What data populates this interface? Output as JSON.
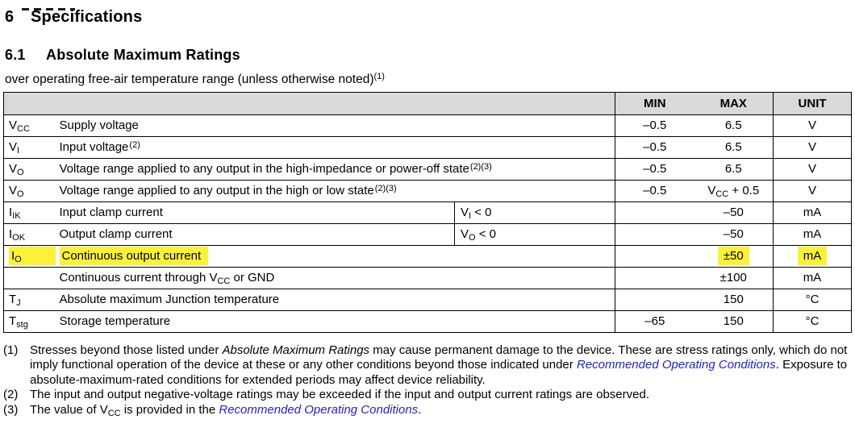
{
  "colors": {
    "highlight": "#fbf138",
    "link": "#2323cc",
    "header_bg": "#d9d9d9",
    "border": "#000000"
  },
  "heading": {
    "number": "6",
    "title": "Specifications"
  },
  "subheading": {
    "number": "6.1",
    "title": "Absolute Maximum Ratings"
  },
  "intro": {
    "text": "over operating free-air temperature range (unless otherwise noted)",
    "note_ref": "(1)"
  },
  "table": {
    "headers": {
      "min": "MIN",
      "max": "MAX",
      "unit": "UNIT"
    },
    "rows": [
      {
        "symbol": [
          {
            "t": "text",
            "v": "V"
          },
          {
            "t": "sub",
            "v": "CC"
          }
        ],
        "desc": [
          {
            "t": "text",
            "v": "Supply voltage"
          }
        ],
        "cond": null,
        "min": "–0.5",
        "max": [
          {
            "t": "text",
            "v": "6.5"
          }
        ],
        "unit": "V",
        "highlight": false
      },
      {
        "symbol": [
          {
            "t": "text",
            "v": "V"
          },
          {
            "t": "sub",
            "v": "I"
          }
        ],
        "desc": [
          {
            "t": "text",
            "v": "Input voltage"
          },
          {
            "t": "sup",
            "v": "(2)"
          }
        ],
        "cond": null,
        "min": "–0.5",
        "max": [
          {
            "t": "text",
            "v": "6.5"
          }
        ],
        "unit": "V",
        "highlight": false
      },
      {
        "symbol": [
          {
            "t": "text",
            "v": "V"
          },
          {
            "t": "sub",
            "v": "O"
          }
        ],
        "desc": [
          {
            "t": "text",
            "v": "Voltage range applied to any output in the high-impedance or power-off state"
          },
          {
            "t": "sup",
            "v": "(2)(3)"
          }
        ],
        "cond": null,
        "min": "–0.5",
        "max": [
          {
            "t": "text",
            "v": "6.5"
          }
        ],
        "unit": "V",
        "highlight": false
      },
      {
        "symbol": [
          {
            "t": "text",
            "v": "V"
          },
          {
            "t": "sub",
            "v": "O"
          }
        ],
        "desc": [
          {
            "t": "text",
            "v": "Voltage range applied to any output in the high or low state"
          },
          {
            "t": "sup",
            "v": "(2)(3)"
          }
        ],
        "cond": null,
        "min": "–0.5",
        "max": [
          {
            "t": "text",
            "v": "V"
          },
          {
            "t": "sub",
            "v": "CC"
          },
          {
            "t": "text",
            "v": " + 0.5"
          }
        ],
        "unit": "V",
        "highlight": false
      },
      {
        "symbol": [
          {
            "t": "text",
            "v": "I"
          },
          {
            "t": "sub",
            "v": "IK"
          }
        ],
        "desc": [
          {
            "t": "text",
            "v": "Input clamp current"
          }
        ],
        "cond": [
          {
            "t": "text",
            "v": "V"
          },
          {
            "t": "sub",
            "v": "I"
          },
          {
            "t": "text",
            "v": " < 0"
          }
        ],
        "min": "",
        "max": [
          {
            "t": "text",
            "v": "–50"
          }
        ],
        "unit": "mA",
        "highlight": false
      },
      {
        "symbol": [
          {
            "t": "text",
            "v": "I"
          },
          {
            "t": "sub",
            "v": "OK"
          }
        ],
        "desc": [
          {
            "t": "text",
            "v": "Output clamp current"
          }
        ],
        "cond": [
          {
            "t": "text",
            "v": "V"
          },
          {
            "t": "sub",
            "v": "O"
          },
          {
            "t": "text",
            "v": " < 0"
          }
        ],
        "min": "",
        "max": [
          {
            "t": "text",
            "v": "–50"
          }
        ],
        "unit": "mA",
        "highlight": false
      },
      {
        "symbol": [
          {
            "t": "text",
            "v": "I"
          },
          {
            "t": "sub",
            "v": "O"
          }
        ],
        "desc": [
          {
            "t": "text",
            "v": "Continuous output current"
          }
        ],
        "cond": null,
        "min": "",
        "max": [
          {
            "t": "text",
            "v": "±50"
          }
        ],
        "unit": "mA",
        "highlight": true
      },
      {
        "symbol": [],
        "desc": [
          {
            "t": "text",
            "v": "Continuous current through V"
          },
          {
            "t": "sub",
            "v": "CC"
          },
          {
            "t": "text",
            "v": " or GND"
          }
        ],
        "cond": null,
        "min": "",
        "max": [
          {
            "t": "text",
            "v": "±100"
          }
        ],
        "unit": "mA",
        "highlight": false
      },
      {
        "symbol": [
          {
            "t": "text",
            "v": "T"
          },
          {
            "t": "sub",
            "v": "J"
          }
        ],
        "desc": [
          {
            "t": "text",
            "v": "Absolute maximum Junction temperature"
          }
        ],
        "cond": null,
        "min": "",
        "max": [
          {
            "t": "text",
            "v": "150"
          }
        ],
        "unit": "°C",
        "highlight": false
      },
      {
        "symbol": [
          {
            "t": "text",
            "v": "T"
          },
          {
            "t": "sub",
            "v": "stg"
          }
        ],
        "desc": [
          {
            "t": "text",
            "v": "Storage temperature"
          }
        ],
        "cond": null,
        "min": "–65",
        "max": [
          {
            "t": "text",
            "v": "150"
          }
        ],
        "unit": "°C",
        "highlight": false
      }
    ]
  },
  "footnotes": [
    {
      "num": "(1)",
      "parts": [
        {
          "t": "text",
          "v": "Stresses beyond those listed under "
        },
        {
          "t": "italic",
          "v": "Absolute Maximum Ratings"
        },
        {
          "t": "text",
          "v": " may cause permanent damage to the device. These are stress ratings only, which do not imply functional operation of the device at these or any other conditions beyond those indicated under "
        },
        {
          "t": "link",
          "v": "Recommended Operating Conditions"
        },
        {
          "t": "text",
          "v": ". Exposure to absolute-maximum-rated conditions for extended periods may affect device reliability."
        }
      ]
    },
    {
      "num": "(2)",
      "parts": [
        {
          "t": "text",
          "v": "The input and output negative-voltage ratings may be exceeded if the input and output current ratings are observed."
        }
      ]
    },
    {
      "num": "(3)",
      "parts": [
        {
          "t": "text",
          "v": "The value of V"
        },
        {
          "t": "sub",
          "v": "CC"
        },
        {
          "t": "text",
          "v": " is provided in the "
        },
        {
          "t": "link",
          "v": "Recommended Operating Conditions"
        },
        {
          "t": "text",
          "v": "."
        }
      ]
    }
  ]
}
